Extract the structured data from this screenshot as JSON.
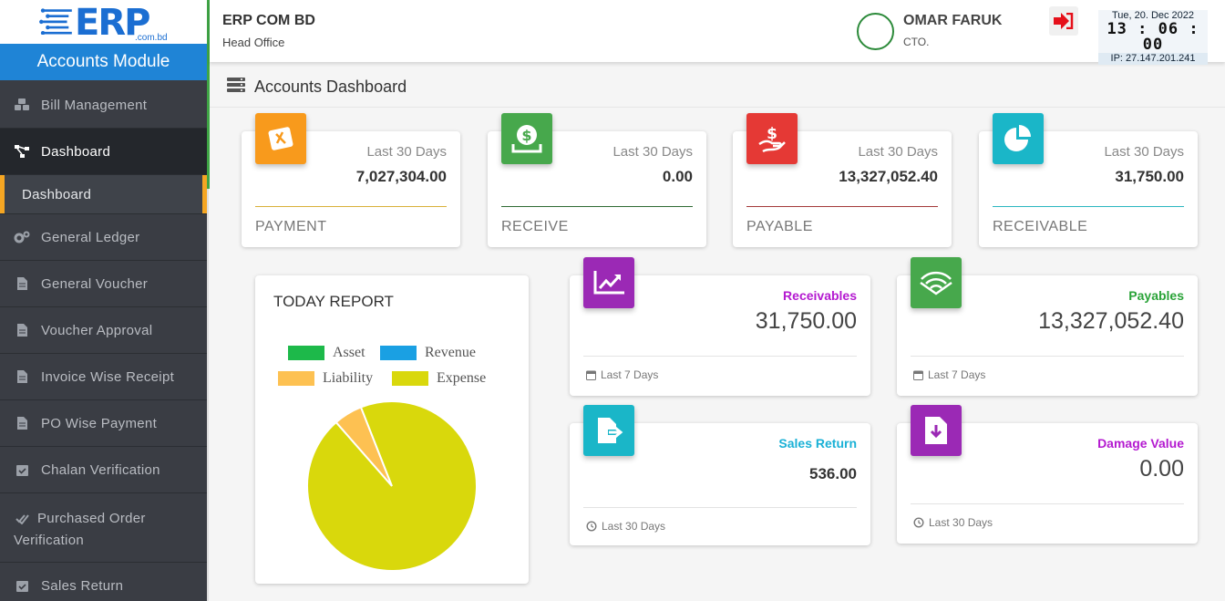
{
  "brand": {
    "logo_text": "ERP",
    "logo_sub": ".com.bd",
    "module": "Accounts Module"
  },
  "sidebar": {
    "items": [
      {
        "label": "Bill Management",
        "icon": "cubes-icon"
      },
      {
        "label": "Dashboard",
        "icon": "sitemap-icon"
      },
      {
        "label": "Dashboard",
        "icon": ""
      },
      {
        "label": "General Ledger",
        "icon": "gears-icon"
      },
      {
        "label": "General Voucher",
        "icon": "file-icon"
      },
      {
        "label": "Voucher Approval",
        "icon": "file-icon"
      },
      {
        "label": "Invoice Wise Receipt",
        "icon": "file-icon"
      },
      {
        "label": "PO Wise Payment",
        "icon": "file-icon"
      },
      {
        "label": "Chalan Verification",
        "icon": "calendar-check-icon"
      },
      {
        "label": "Purchased Order Verification",
        "icon": "double-check-icon"
      },
      {
        "label": "Sales Return",
        "icon": "calendar-check-icon"
      }
    ]
  },
  "header": {
    "company": "ERP COM BD",
    "branch": "Head Office",
    "user_name": "OMAR FARUK",
    "user_role": "CTO.",
    "date": "Tue, 20. Dec 2022",
    "time": "13 : 06 : 00",
    "ip": "IP: 27.147.201.241"
  },
  "page": {
    "title": "Accounts Dashboard"
  },
  "stats": [
    {
      "caption": "Last 30 Days",
      "value": "7,027,304.00",
      "label": "PAYMENT",
      "color": "#f89a1c",
      "line": "#d9b13a",
      "icon": "payment-icon"
    },
    {
      "caption": "Last 30 Days",
      "value": "0.00",
      "label": "RECEIVE",
      "color": "#47a84c",
      "line": "#2f6b34",
      "icon": "money-bag-icon"
    },
    {
      "caption": "Last 30 Days",
      "value": "13,327,052.40",
      "label": "PAYABLE",
      "color": "#e53935",
      "line": "#a33a3a",
      "icon": "hand-dollar-icon"
    },
    {
      "caption": "Last 30 Days",
      "value": "31,750.00",
      "label": "RECEIVABLE",
      "color": "#1ab6c8",
      "line": "#2bb6c0",
      "icon": "pie-chart-icon"
    }
  ],
  "report": {
    "title": "TODAY REPORT",
    "legend": [
      {
        "name": "Asset",
        "color": "#1db94a"
      },
      {
        "name": "Revenue",
        "color": "#1aa0e3"
      },
      {
        "name": "Liability",
        "color": "#fdc152"
      },
      {
        "name": "Expense",
        "color": "#d9d80c"
      }
    ]
  },
  "chart_data": {
    "type": "pie",
    "title": "TODAY REPORT",
    "labels": [
      "Asset",
      "Revenue",
      "Liability",
      "Expense"
    ],
    "values": [
      0,
      0,
      5.5,
      94.5
    ],
    "colors": [
      "#1db94a",
      "#1aa0e3",
      "#fdc152",
      "#d9d80c"
    ],
    "legend": "top"
  },
  "cards": [
    {
      "title": "Receivables",
      "value": "31,750.00",
      "footer": "Last 7 Days",
      "title_color": "#b41ad0",
      "badge": "#9b29b5",
      "icon": "line-chart-icon",
      "footer_icon": "calendar-icon"
    },
    {
      "title": "Payables",
      "value": "13,327,052.40",
      "footer": "Last 7 Days",
      "title_color": "#2aa338",
      "badge": "#47a84c",
      "icon": "wifi-book-icon",
      "footer_icon": "calendar-icon"
    },
    {
      "title": "Sales Return",
      "value": "536.00",
      "footer": "Last 30 Days",
      "title_color": "#1ab1d6",
      "badge": "#1ab6c8",
      "icon": "file-export-icon",
      "footer_icon": "history-icon"
    },
    {
      "title": "Damage Value",
      "value": "0.00",
      "footer": "Last 30 Days",
      "title_color": "#b41ad0",
      "badge": "#9b29b5",
      "icon": "file-download-icon",
      "footer_icon": "history-icon"
    }
  ]
}
